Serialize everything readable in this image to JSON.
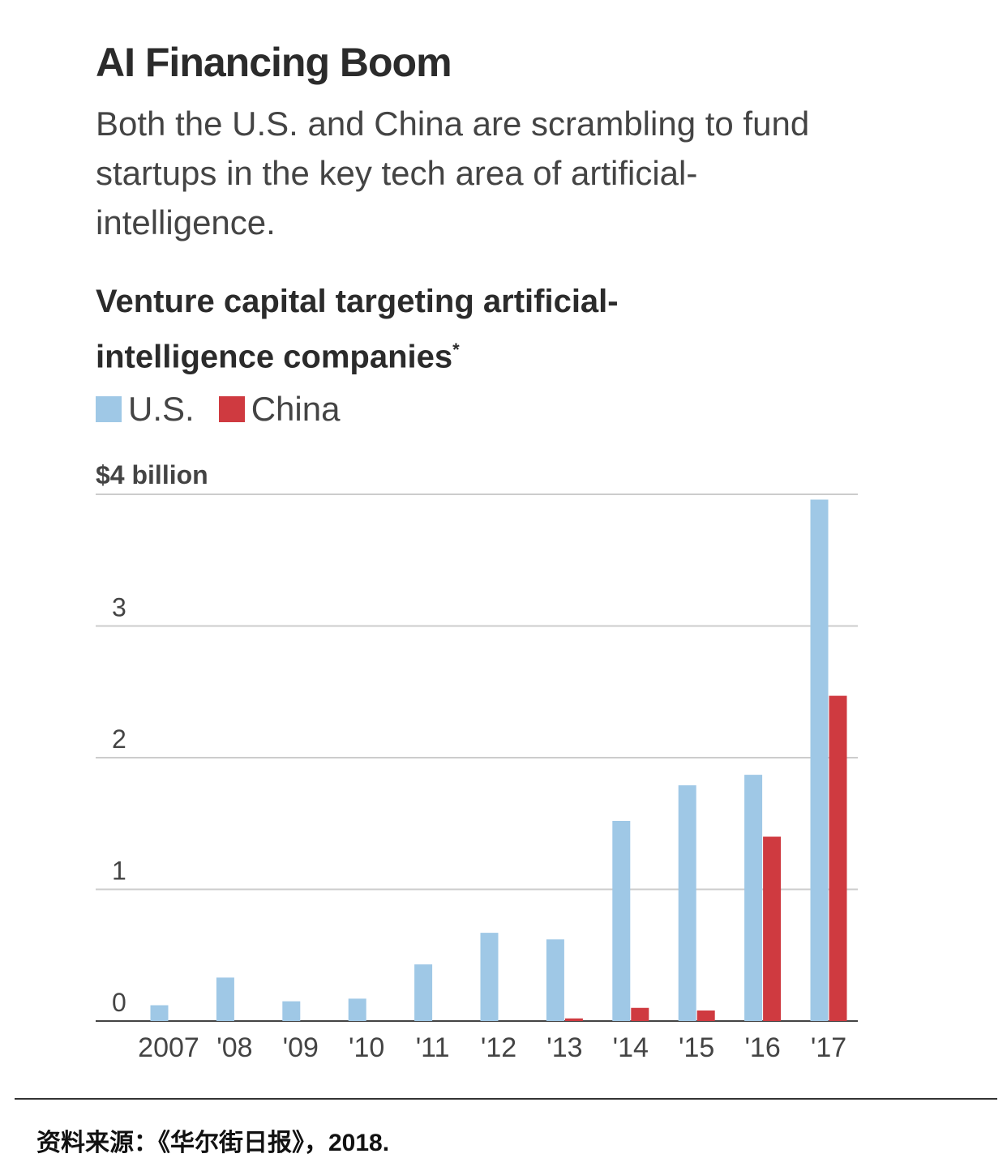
{
  "header": {
    "title": "AI Financing Boom",
    "subtitle": "Both the U.S. and China are scrambling to fund startups in the key tech area of artificial-intelligence."
  },
  "legend": {
    "us_label": "U.S.",
    "china_label": "China"
  },
  "colors": {
    "us": "#9fc8e6",
    "china": "#cf3a40",
    "grid": "#cccccc",
    "axis": "#444444"
  },
  "chart_data": {
    "type": "bar",
    "title": "Venture capital targeting artificial-intelligence companies",
    "title_marker": "*",
    "unit_label": "$4 billion",
    "categories": [
      "2007",
      "'08",
      "'09",
      "'10",
      "'11",
      "'12",
      "'13",
      "'14",
      "'15",
      "'16",
      "'17"
    ],
    "series": [
      {
        "name": "U.S.",
        "values": [
          0.12,
          0.33,
          0.15,
          0.17,
          0.43,
          0.67,
          0.62,
          1.52,
          1.79,
          1.87,
          3.96
        ]
      },
      {
        "name": "China",
        "values": [
          0.0,
          0.0,
          0.0,
          0.0,
          0.0,
          0.0,
          0.02,
          0.1,
          0.08,
          1.4,
          2.47
        ]
      }
    ],
    "ylim": [
      0,
      4
    ],
    "yticks": [
      0,
      1,
      2,
      3,
      4
    ],
    "ytick_labels": [
      "0",
      "1",
      "2",
      "3",
      ""
    ],
    "grid": true,
    "legend_position": "top-left"
  },
  "footer": {
    "source": "资料来源：《华尔街日报》，2018."
  }
}
